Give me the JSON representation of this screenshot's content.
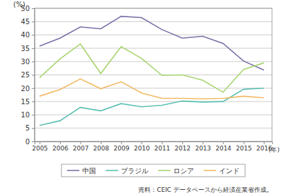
{
  "chart_data": {
    "type": "line",
    "y_label": "(%)",
    "x_label": "(年)",
    "source": "資料：CEIC データベースから経済産業省作成。",
    "x": [
      2005,
      2006,
      2007,
      2008,
      2009,
      2010,
      2011,
      2012,
      2013,
      2014,
      2015,
      2016
    ],
    "xlim": [
      2004.75,
      2016.4
    ],
    "xticks": [
      2005,
      2006,
      2007,
      2008,
      2009,
      2010,
      2011,
      2012,
      2013,
      2014,
      2015,
      2016
    ],
    "ylim": [
      0,
      50
    ],
    "yticks": [
      0,
      5,
      10,
      15,
      20,
      25,
      30,
      35,
      40,
      45,
      50
    ],
    "grid": true,
    "legend": "bottom",
    "series": [
      {
        "name": "中国",
        "color": "#7a6ea8",
        "values": [
          35.8,
          38.8,
          43,
          42.3,
          47,
          46.5,
          42,
          38.8,
          39.5,
          36.8,
          30.2,
          26.8
        ]
      },
      {
        "name": "ブラジル",
        "color": "#5cbfb2",
        "values": [
          6,
          7.8,
          12.8,
          11.5,
          14.2,
          13,
          13.6,
          15.2,
          14.8,
          15,
          19.6,
          20
        ]
      },
      {
        "name": "ロシア",
        "color": "#a9d470",
        "values": [
          24,
          31,
          36.6,
          25.5,
          35.6,
          31.2,
          24.8,
          25,
          23,
          18.5,
          27,
          29.5
        ]
      },
      {
        "name": "インド",
        "color": "#f2b962",
        "values": [
          17,
          19.5,
          23.5,
          19.8,
          22.4,
          18.2,
          16.2,
          16.2,
          16,
          16.2,
          17,
          16.4
        ]
      }
    ]
  }
}
